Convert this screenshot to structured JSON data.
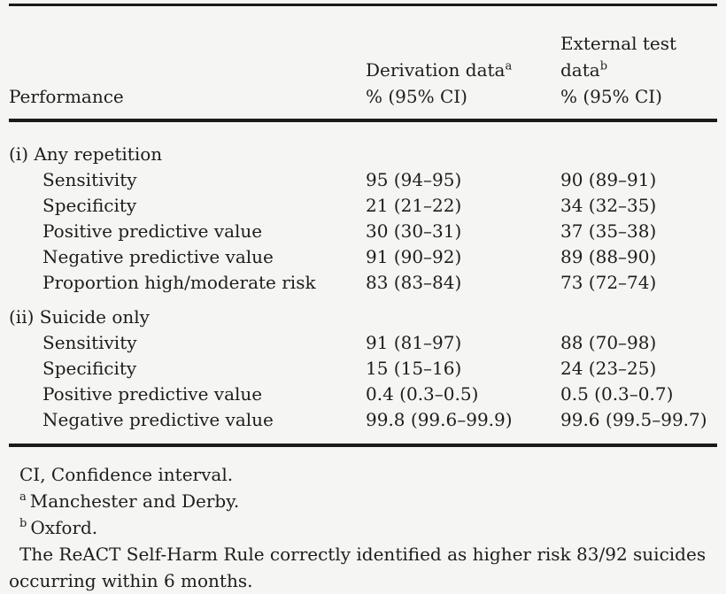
{
  "colors": {
    "background": "#f5f5f4",
    "text": "#1d1d1d",
    "rule": "#1a1a1a"
  },
  "table": {
    "header": {
      "performance_label": "Performance",
      "derivation": {
        "title": "Derivation data",
        "sup": "a",
        "subtitle": "% (95% CI)"
      },
      "external": {
        "title": "External test data",
        "sup": "b",
        "subtitle": "% (95% CI)"
      }
    },
    "sections": [
      {
        "label": "(i) Any repetition",
        "rows": [
          {
            "label": "Sensitivity",
            "derivation": "95 (94–95)",
            "external": "90 (89–91)"
          },
          {
            "label": "Specificity",
            "derivation": "21 (21–22)",
            "external": "34 (32–35)"
          },
          {
            "label": "Positive predictive value",
            "derivation": "30 (30–31)",
            "external": "37 (35–38)"
          },
          {
            "label": "Negative predictive value",
            "derivation": "91 (90–92)",
            "external": "89 (88–90)"
          },
          {
            "label": "Proportion high/moderate risk",
            "derivation": "83 (83–84)",
            "external": "73 (72–74)"
          }
        ]
      },
      {
        "label": "(ii) Suicide only",
        "rows": [
          {
            "label": "Sensitivity",
            "derivation": "91 (81–97)",
            "external": "88 (70–98)"
          },
          {
            "label": "Specificity",
            "derivation": "15 (15–16)",
            "external": "24 (23–25)"
          },
          {
            "label": "Positive predictive value",
            "derivation": "0.4 (0.3–0.5)",
            "external": "0.5 (0.3–0.7)"
          },
          {
            "label": "Negative predictive value",
            "derivation": "99.8 (99.6–99.9)",
            "external": "99.6 (99.5–99.7)"
          }
        ]
      }
    ]
  },
  "footnotes": [
    {
      "sup": "",
      "text": "CI, Confidence interval."
    },
    {
      "sup": "a",
      "text": "Manchester and Derby."
    },
    {
      "sup": "b",
      "text": "Oxford."
    },
    {
      "sup": "",
      "text": "The ReACT Self-Harm Rule correctly identified as higher risk 83/92 suicides occurring within 6 months."
    }
  ]
}
